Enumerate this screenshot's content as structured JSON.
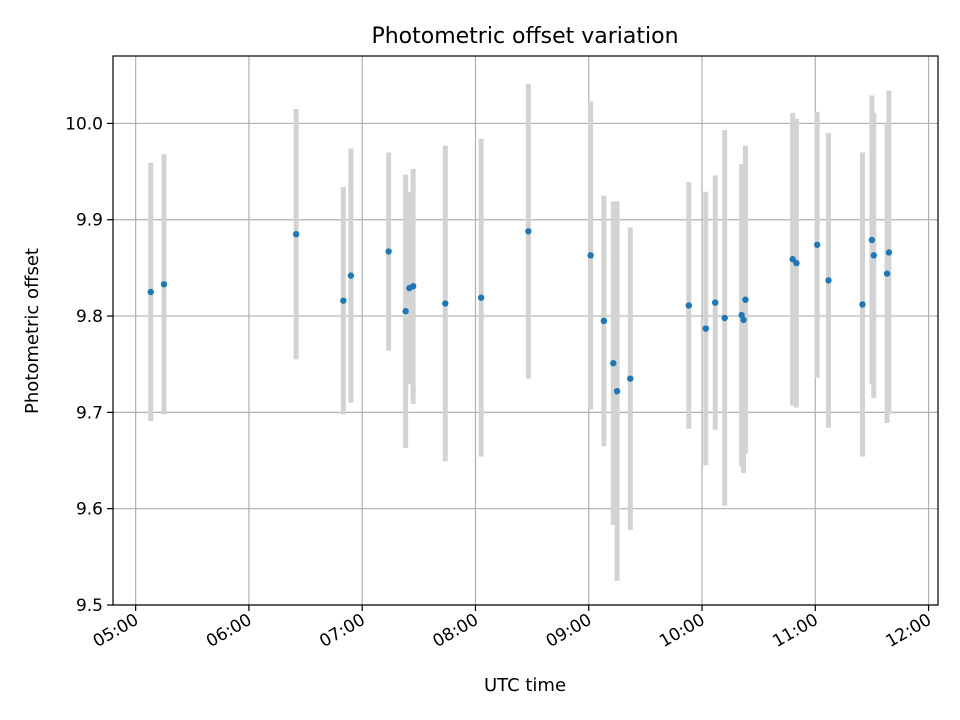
{
  "chart_data": {
    "type": "scatter",
    "title": "Photometric offset variation",
    "xlabel": "UTC time",
    "ylabel": "Photometric offset",
    "xlim": [
      "04:48",
      "12:05"
    ],
    "ylim": [
      9.5,
      10.07
    ],
    "x_ticks": [
      "05:00",
      "06:00",
      "07:00",
      "08:00",
      "09:00",
      "10:00",
      "11:00",
      "12:00"
    ],
    "y_ticks": [
      "9.5",
      "9.6",
      "9.7",
      "9.8",
      "9.9",
      "10.0"
    ],
    "grid": true,
    "colors": {
      "marker": "#1f77b4",
      "errorbar": "#d3d3d3",
      "grid": "#b0b0b0"
    },
    "series": [
      {
        "x": [
          "05:08",
          "05:15",
          "06:25",
          "06:50",
          "06:54",
          "07:14",
          "07:23",
          "07:25",
          "07:27",
          "07:44",
          "08:03",
          "08:28",
          "09:01",
          "09:08",
          "09:13",
          "09:15",
          "09:22",
          "09:53",
          "10:02",
          "10:07",
          "10:12",
          "10:21",
          "10:22",
          "10:23",
          "10:48",
          "10:50",
          "11:01",
          "11:07",
          "11:25",
          "11:30",
          "11:31",
          "11:38",
          "11:39"
        ],
        "y": [
          9.825,
          9.833,
          9.885,
          9.816,
          9.842,
          9.867,
          9.805,
          9.829,
          9.831,
          9.813,
          9.819,
          9.888,
          9.863,
          9.795,
          9.751,
          9.722,
          9.735,
          9.811,
          9.787,
          9.814,
          9.798,
          9.801,
          9.796,
          9.817,
          9.859,
          9.855,
          9.874,
          9.837,
          9.812,
          9.879,
          9.863,
          9.844,
          9.866
        ],
        "y_err": [
          0.134,
          0.135,
          0.13,
          0.118,
          0.132,
          0.103,
          0.142,
          0.1,
          0.122,
          0.164,
          0.165,
          0.153,
          0.16,
          0.13,
          0.168,
          0.197,
          0.157,
          0.128,
          0.142,
          0.132,
          0.195,
          0.157,
          0.159,
          0.16,
          0.152,
          0.15,
          0.138,
          0.153,
          0.158,
          0.15,
          0.148,
          0.155,
          0.168
        ]
      }
    ]
  }
}
